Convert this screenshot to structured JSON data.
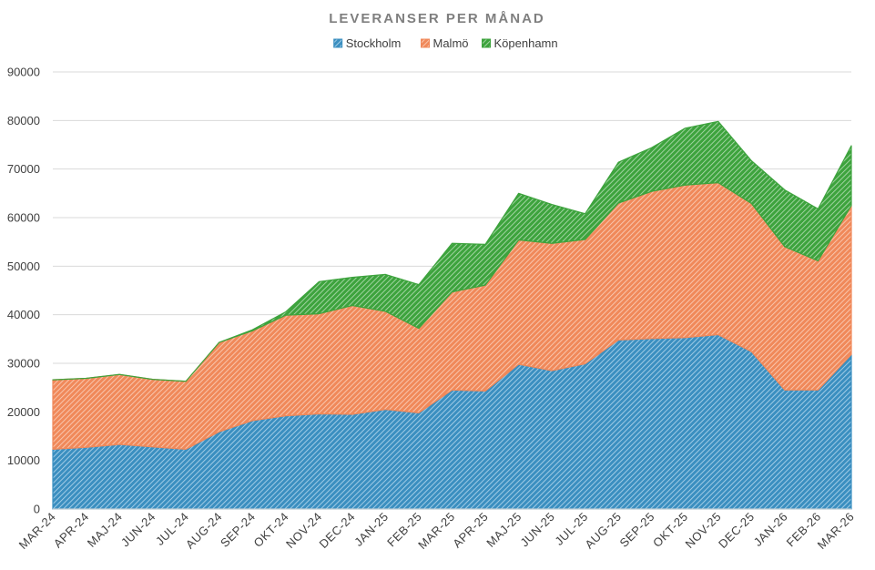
{
  "chart_data": {
    "type": "area",
    "stacked": true,
    "title": "LEVERANSER PER MÅNAD",
    "xlabel": "",
    "ylabel": "",
    "ylim": [
      0,
      90000
    ],
    "yticks": [
      0,
      10000,
      20000,
      30000,
      40000,
      50000,
      60000,
      70000,
      80000,
      90000
    ],
    "grid": true,
    "legend_position": "top",
    "categories": [
      "MAR-24",
      "APR-24",
      "MAJ-24",
      "JUN-24",
      "JUL-24",
      "AUG-24",
      "SEP-24",
      "OKT-24",
      "NOV-24",
      "DEC-24",
      "JAN-25",
      "FEB-25",
      "MAR-25",
      "APR-25",
      "MAJ-25",
      "JUN-25",
      "JUL-25",
      "AUG-25",
      "SEP-25",
      "OKT-25",
      "NOV-25",
      "DEC-25",
      "JAN-26",
      "FEB-26",
      "MAR-26"
    ],
    "series": [
      {
        "name": "Stockholm",
        "color": "#3b8fc0",
        "values": [
          12300,
          12700,
          13300,
          12800,
          12300,
          15900,
          18200,
          19200,
          19600,
          19500,
          20500,
          19800,
          24500,
          24300,
          29800,
          28500,
          29900,
          34800,
          35100,
          35300,
          35900,
          32400,
          24500,
          24500,
          31800
        ]
      },
      {
        "name": "Malmö",
        "color": "#f0895a",
        "values": [
          14300,
          14200,
          14400,
          13900,
          14000,
          18400,
          18500,
          20700,
          20600,
          22400,
          20200,
          17400,
          20200,
          21800,
          25600,
          26200,
          25600,
          28200,
          30300,
          31400,
          31300,
          30500,
          29500,
          26600,
          30700
        ]
      },
      {
        "name": "Köpenhamn",
        "color": "#3da33d",
        "values": [
          0,
          0,
          0,
          0,
          0,
          0,
          200,
          700,
          6600,
          5800,
          7600,
          9000,
          10000,
          8400,
          9600,
          8000,
          5300,
          8400,
          9000,
          11700,
          12600,
          8800,
          11700,
          10700,
          12300
        ]
      }
    ]
  }
}
